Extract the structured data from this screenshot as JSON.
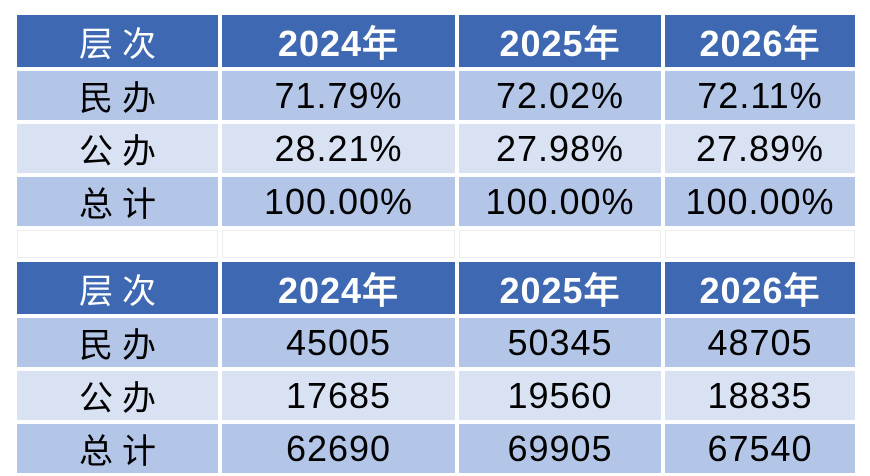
{
  "colors": {
    "page_bg": "#FFFFFF",
    "header_bg": "#3E68B2",
    "header_text": "#FFFFFF",
    "band_dark": "#B4C6E7",
    "band_light": "#D9E2F3",
    "body_text": "#000000"
  },
  "chart_data": [
    {
      "type": "table",
      "columns": [
        "层次",
        "2024年",
        "2025年",
        "2026年"
      ],
      "rows": [
        [
          "民办",
          "71.79%",
          "72.02%",
          "72.11%"
        ],
        [
          "公办",
          "28.21%",
          "27.98%",
          "27.89%"
        ],
        [
          "总计",
          "100.00%",
          "100.00%",
          "100.00%"
        ]
      ],
      "layout": {
        "header_fill": "#3E68B2",
        "row_band_fills": [
          "#B4C6E7",
          "#D9E2F3",
          "#B4C6E7"
        ],
        "grid": "white-separators"
      }
    },
    {
      "type": "table",
      "columns": [
        "层次",
        "2024年",
        "2025年",
        "2026年"
      ],
      "rows": [
        [
          "民办",
          "45005",
          "50345",
          "48705"
        ],
        [
          "公办",
          "17685",
          "19560",
          "18835"
        ],
        [
          "总计",
          "62690",
          "69905",
          "67540"
        ]
      ],
      "layout": {
        "header_fill": "#3E68B2",
        "row_band_fills": [
          "#B4C6E7",
          "#D9E2F3",
          "#B4C6E7"
        ],
        "grid": "white-separators"
      }
    }
  ]
}
